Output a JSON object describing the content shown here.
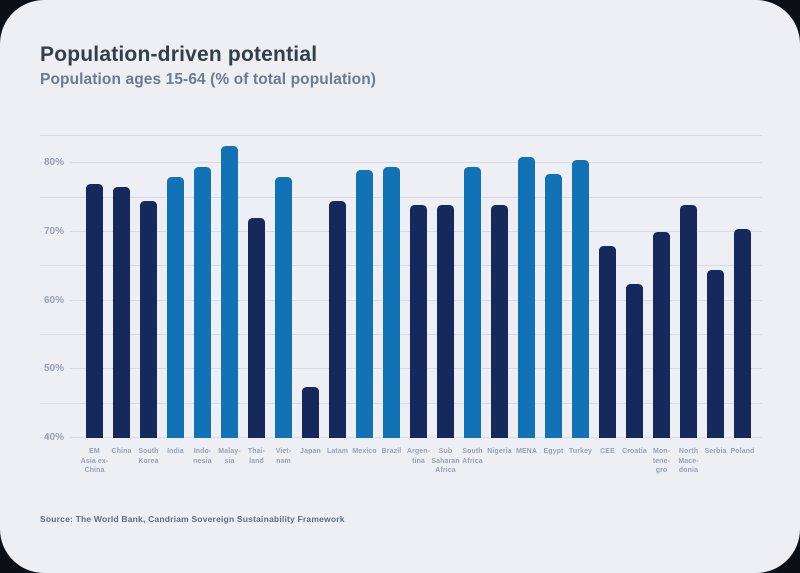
{
  "header": {
    "title": "Population-driven potential",
    "subtitle": "Population ages 15-64 (% of total population)"
  },
  "footer": {
    "source": "Source: The World Bank, Candriam Sovereign Sustainability Framework"
  },
  "colors": {
    "page_background": "#0c0f15",
    "card_background": "#edeff4",
    "bar_dark": "#15295d",
    "bar_light": "#1173b5",
    "gridline": "#d7dbe4",
    "title_text": "#333e49",
    "subtitle_text": "#6d7b8f",
    "yaxis_text": "#98a0b1",
    "xaxis_text": "#9aa2b3",
    "source_text": "#5f6d82"
  },
  "chart_data": {
    "type": "bar",
    "title": "Population-driven potential",
    "subtitle": "Population ages 15-64 (% of total population)",
    "xlabel": "",
    "ylabel": "Population ages 15-64 (% of total population)",
    "ylim": [
      40,
      84
    ],
    "yticks": [
      40,
      50,
      60,
      70,
      80
    ],
    "ytick_suffix": "%",
    "gridline_step": 5,
    "grid": true,
    "legend": false,
    "categories": [
      "EM Asia ex-China",
      "China",
      "South Korea",
      "India",
      "Indonesia",
      "Malaysia",
      "Thailand",
      "Vietnam",
      "Japan",
      "Latam",
      "Mexico",
      "Brazil",
      "Argentina",
      "Sub Saharan Africa",
      "South Africa",
      "Nigeria",
      "MENA",
      "Egypt",
      "Turkey",
      "CEE",
      "Croatia",
      "Montenegro",
      "North Macedonia",
      "Serbia",
      "Poland"
    ],
    "category_label_lines": [
      [
        "EM",
        "Asia ex-",
        "China"
      ],
      [
        "China"
      ],
      [
        "South",
        "Korea"
      ],
      [
        "India"
      ],
      [
        "Indo-",
        "nesia"
      ],
      [
        "Malay-",
        "sia"
      ],
      [
        "Thai-",
        "land"
      ],
      [
        "Viet-",
        "nam"
      ],
      [
        "Japan"
      ],
      [
        "Latam"
      ],
      [
        "Mexico"
      ],
      [
        "Brazil"
      ],
      [
        "Argen-",
        "tina"
      ],
      [
        "Sub",
        "Saharan",
        "Africa"
      ],
      [
        "South",
        "Africa"
      ],
      [
        "Nigeria"
      ],
      [
        "MENA"
      ],
      [
        "Egypt"
      ],
      [
        "Turkey"
      ],
      [
        "CEE"
      ],
      [
        "Croatia"
      ],
      [
        "Mon-",
        "tene-",
        "gro"
      ],
      [
        "North",
        "Mace-",
        "donia"
      ],
      [
        "Serbia"
      ],
      [
        "Poland"
      ]
    ],
    "values": [
      77,
      76.5,
      74.5,
      78,
      79.5,
      82.5,
      72,
      78,
      47.5,
      74.5,
      79,
      79.5,
      74,
      74,
      79.5,
      74,
      81,
      78.5,
      80.5,
      68,
      62.5,
      70,
      74,
      64.5,
      70.5
    ],
    "colors": [
      "dark",
      "dark",
      "dark",
      "light",
      "light",
      "light",
      "dark",
      "light",
      "dark",
      "dark",
      "light",
      "light",
      "dark",
      "dark",
      "light",
      "dark",
      "light",
      "light",
      "light",
      "dark",
      "dark",
      "dark",
      "dark",
      "dark",
      "dark"
    ],
    "color_map": {
      "dark": "#15295d",
      "light": "#1173b5"
    }
  }
}
